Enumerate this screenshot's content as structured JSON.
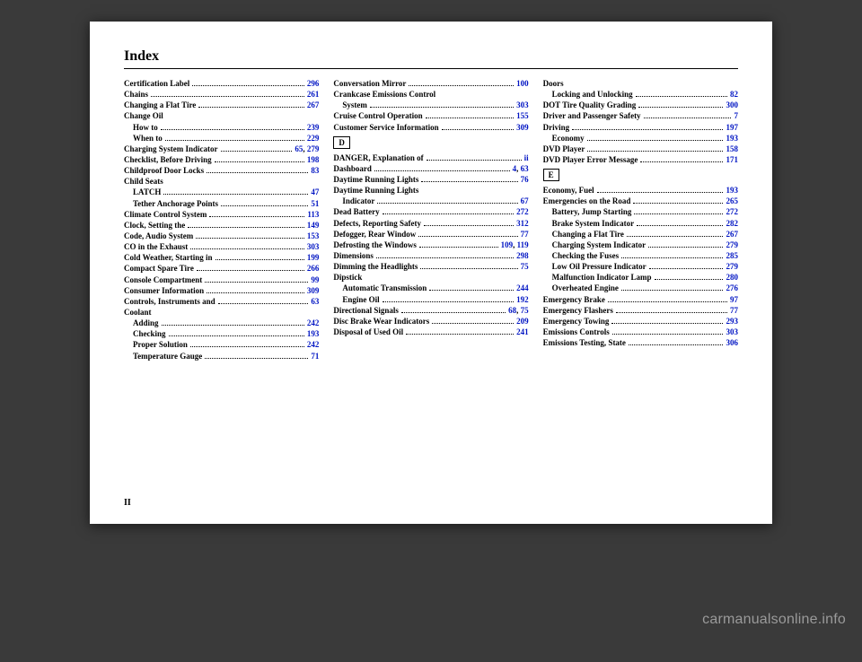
{
  "title": "Index",
  "page_number": "II",
  "watermark": "carmanualsonline.info",
  "link_color": "#0014c3",
  "columns": [
    [
      {
        "label": "Certification Label",
        "pages": [
          "296"
        ]
      },
      {
        "label": "Chains",
        "pages": [
          "261"
        ]
      },
      {
        "label": "Changing a Flat Tire",
        "pages": [
          "267"
        ]
      },
      {
        "label": "Change Oil",
        "noref": true
      },
      {
        "label": "How to",
        "pages": [
          "239"
        ],
        "sub": true
      },
      {
        "label": "When to",
        "pages": [
          "229"
        ],
        "sub": true
      },
      {
        "label": "Charging System Indicator",
        "pages": [
          "65",
          "279"
        ]
      },
      {
        "label": "Checklist, Before Driving",
        "pages": [
          "198"
        ]
      },
      {
        "label": "Childproof Door Locks",
        "pages": [
          "83"
        ]
      },
      {
        "label": "Child Seats",
        "noref": true
      },
      {
        "label": "LATCH",
        "pages": [
          "47"
        ],
        "sub": true
      },
      {
        "label": "Tether Anchorage Points",
        "pages": [
          "51"
        ],
        "sub": true
      },
      {
        "label": "Climate Control System",
        "pages": [
          "113"
        ]
      },
      {
        "label": "Clock, Setting the",
        "pages": [
          "149"
        ]
      },
      {
        "label": "Code, Audio System",
        "pages": [
          "153"
        ]
      },
      {
        "label": "CO in the Exhaust",
        "pages": [
          "303"
        ]
      },
      {
        "label": "Cold Weather, Starting in",
        "pages": [
          "199"
        ]
      },
      {
        "label": "Compact Spare Tire",
        "pages": [
          "266"
        ]
      },
      {
        "label": "Console Compartment",
        "pages": [
          "99"
        ]
      },
      {
        "label": "Consumer Information",
        "pages": [
          "309"
        ]
      },
      {
        "label": "Controls, Instruments and",
        "pages": [
          "63"
        ]
      },
      {
        "label": "Coolant",
        "noref": true
      },
      {
        "label": "Adding",
        "pages": [
          "242"
        ],
        "sub": true
      },
      {
        "label": "Checking",
        "pages": [
          "193"
        ],
        "sub": true
      },
      {
        "label": "Proper Solution",
        "pages": [
          "242"
        ],
        "sub": true
      },
      {
        "label": "Temperature Gauge",
        "pages": [
          "71"
        ],
        "sub": true
      }
    ],
    [
      {
        "label": "Conversation Mirror",
        "pages": [
          "100"
        ]
      },
      {
        "label": "Crankcase Emissions Control",
        "noref": true
      },
      {
        "label": "System",
        "pages": [
          "303"
        ],
        "sub": true
      },
      {
        "label": "Cruise Control Operation",
        "pages": [
          "155"
        ]
      },
      {
        "label": "Customer Service Information",
        "pages": [
          "309"
        ]
      },
      {
        "letter": "D"
      },
      {
        "label": "DANGER, Explanation of",
        "pages": [
          "ii"
        ]
      },
      {
        "label": "Dashboard",
        "pages": [
          "4",
          "63"
        ]
      },
      {
        "label": "Daytime Running Lights",
        "pages": [
          "76"
        ]
      },
      {
        "label": "Daytime Running Lights",
        "noref": true
      },
      {
        "label": "Indicator",
        "pages": [
          "67"
        ],
        "sub": true
      },
      {
        "label": "Dead Battery",
        "pages": [
          "272"
        ]
      },
      {
        "label": "Defects, Reporting Safety",
        "pages": [
          "312"
        ]
      },
      {
        "label": "Defogger, Rear Window",
        "pages": [
          "77"
        ]
      },
      {
        "label": "Defrosting the Windows",
        "pages": [
          "109",
          "119"
        ]
      },
      {
        "label": "Dimensions",
        "pages": [
          "298"
        ]
      },
      {
        "label": "Dimming the Headlights",
        "pages": [
          "75"
        ]
      },
      {
        "label": "Dipstick",
        "noref": true
      },
      {
        "label": "Automatic Transmission",
        "pages": [
          "244"
        ],
        "sub": true
      },
      {
        "label": "Engine Oil",
        "pages": [
          "192"
        ],
        "sub": true
      },
      {
        "label": "Directional Signals",
        "pages": [
          "68",
          "75"
        ]
      },
      {
        "label": "Disc Brake Wear Indicators",
        "pages": [
          "209"
        ]
      },
      {
        "label": "Disposal of Used Oil",
        "pages": [
          "241"
        ]
      }
    ],
    [
      {
        "label": "Doors",
        "noref": true
      },
      {
        "label": "Locking and Unlocking",
        "pages": [
          "82"
        ],
        "sub": true
      },
      {
        "label": "DOT Tire Quality Grading",
        "pages": [
          "300"
        ]
      },
      {
        "label": "Driver and Passenger Safety",
        "pages": [
          "7"
        ]
      },
      {
        "label": "Driving",
        "pages": [
          "197"
        ]
      },
      {
        "label": "Economy",
        "pages": [
          "193"
        ],
        "sub": true
      },
      {
        "label": "DVD Player",
        "pages": [
          "158"
        ]
      },
      {
        "label": "DVD Player Error Message",
        "pages": [
          "171"
        ]
      },
      {
        "letter": "E"
      },
      {
        "label": "Economy, Fuel",
        "pages": [
          "193"
        ]
      },
      {
        "label": "Emergencies on the Road",
        "pages": [
          "265"
        ]
      },
      {
        "label": "Battery, Jump Starting",
        "pages": [
          "272"
        ],
        "sub": true
      },
      {
        "label": "Brake System Indicator",
        "pages": [
          "282"
        ],
        "sub": true
      },
      {
        "label": "Changing a Flat Tire",
        "pages": [
          "267"
        ],
        "sub": true
      },
      {
        "label": "Charging System Indicator",
        "pages": [
          "279"
        ],
        "sub": true
      },
      {
        "label": "Checking the Fuses",
        "pages": [
          "285"
        ],
        "sub": true
      },
      {
        "label": "Low Oil Pressure Indicator",
        "pages": [
          "279"
        ],
        "sub": true
      },
      {
        "label": "Malfunction Indicator Lamp",
        "pages": [
          "280"
        ],
        "sub": true
      },
      {
        "label": "Overheated Engine",
        "pages": [
          "276"
        ],
        "sub": true
      },
      {
        "label": "Emergency Brake",
        "pages": [
          "97"
        ]
      },
      {
        "label": "Emergency Flashers",
        "pages": [
          "77"
        ]
      },
      {
        "label": "Emergency Towing",
        "pages": [
          "293"
        ]
      },
      {
        "label": "Emissions Controls",
        "pages": [
          "303"
        ]
      },
      {
        "label": "Emissions Testing, State",
        "pages": [
          "306"
        ]
      }
    ]
  ]
}
